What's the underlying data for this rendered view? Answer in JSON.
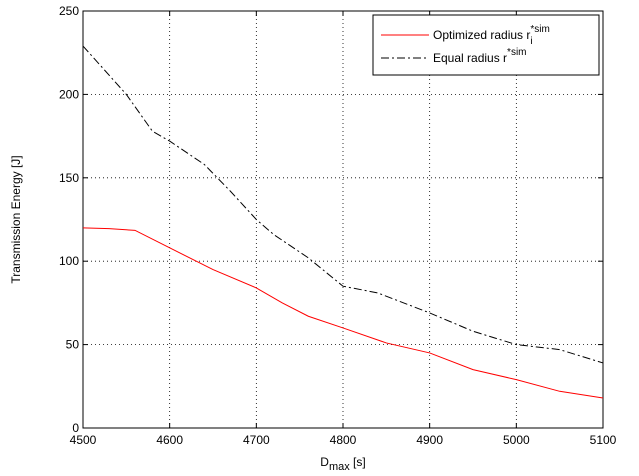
{
  "chart_data": {
    "type": "line",
    "title": "",
    "xlabel_main": "D",
    "xlabel_sub": "max",
    "xlabel_unit": " [s]",
    "ylabel": "Transmission Energy [J]",
    "xlim": [
      4500,
      5100
    ],
    "ylim": [
      0,
      250
    ],
    "xticks": [
      4500,
      4600,
      4700,
      4800,
      4900,
      5000,
      5100
    ],
    "yticks": [
      0,
      50,
      100,
      150,
      200,
      250
    ],
    "grid": true,
    "legend_position": "top-right",
    "series": [
      {
        "name": "Optimized radius r",
        "legend_sup": "*sim",
        "legend_sub": "i",
        "color": "#ff0000",
        "style": "solid",
        "x": [
          4500,
          4530,
          4560,
          4600,
          4650,
          4700,
          4730,
          4760,
          4800,
          4850,
          4900,
          4950,
          5000,
          5050,
          5100
        ],
        "y": [
          120,
          119.5,
          118.5,
          108,
          95,
          84,
          75,
          67,
          60,
          51,
          45,
          35,
          29,
          22,
          18
        ]
      },
      {
        "name": "Equal radius r",
        "legend_sup": "*sim",
        "legend_sub": "",
        "color": "#000000",
        "style": "dashdot",
        "x": [
          4500,
          4550,
          4580,
          4600,
          4640,
          4670,
          4700,
          4720,
          4760,
          4800,
          4840,
          4900,
          4950,
          5000,
          5050,
          5100
        ],
        "y": [
          229,
          200,
          178,
          172,
          158,
          142,
          125,
          116,
          102,
          85,
          81,
          69,
          58,
          50,
          47,
          39
        ]
      }
    ]
  }
}
